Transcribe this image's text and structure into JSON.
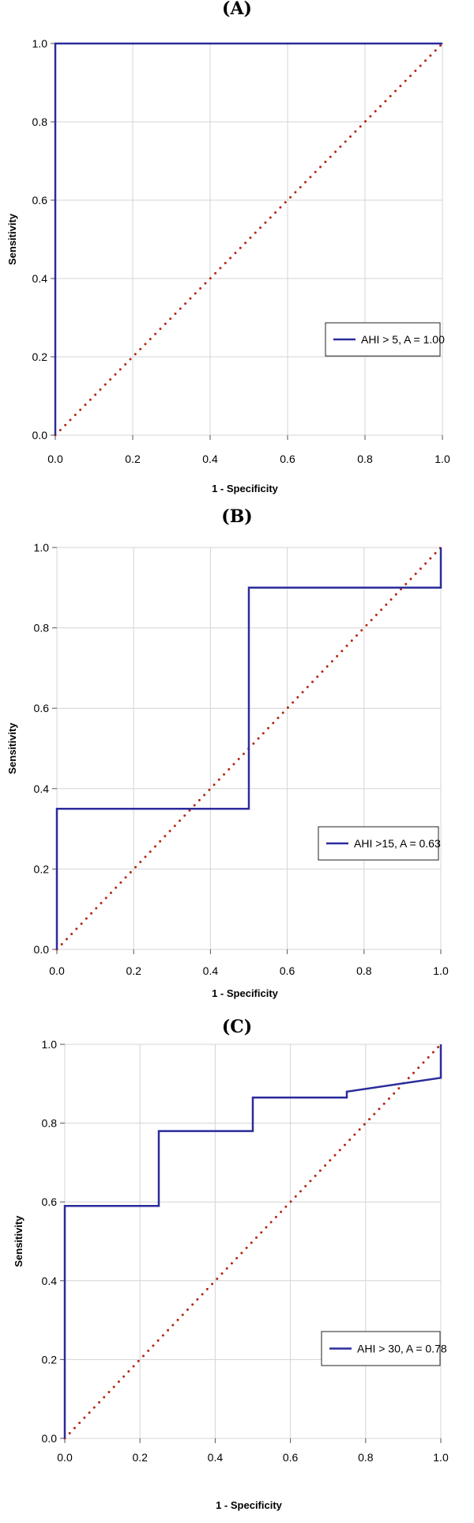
{
  "chart_data": [
    {
      "panel_label": "(A)",
      "type": "line",
      "xlabel": "1 - Specificity",
      "ylabel": "Sensitivity",
      "xlim": [
        0,
        1
      ],
      "ylim": [
        0,
        1
      ],
      "xticks": [
        "0.0",
        "0.2",
        "0.4",
        "0.6",
        "0.8",
        "1.0"
      ],
      "yticks": [
        "0.0",
        "0.2",
        "0.4",
        "0.6",
        "0.8",
        "1.0"
      ],
      "grid": true,
      "legend_position": "bottom-right",
      "series": [
        {
          "name": "AHI > 5, A = 1.00",
          "color": "#2b2b9c",
          "style": "solid",
          "x": [
            0,
            0,
            1
          ],
          "y": [
            0,
            1,
            1
          ]
        },
        {
          "color": "#b5250e",
          "style": "dotted",
          "x": [
            0,
            1
          ],
          "y": [
            0,
            1
          ]
        }
      ]
    },
    {
      "panel_label": "(B)",
      "type": "line",
      "xlabel": "1 - Specificity",
      "ylabel": "Sensitivity",
      "xlim": [
        0,
        1
      ],
      "ylim": [
        0,
        1
      ],
      "xticks": [
        "0.0",
        "0.2",
        "0.4",
        "0.6",
        "0.8",
        "1.0"
      ],
      "yticks": [
        "0.0",
        "0.2",
        "0.4",
        "0.6",
        "0.8",
        "1.0"
      ],
      "grid": true,
      "legend_position": "bottom-right",
      "series": [
        {
          "name": "AHI >15, A = 0.63",
          "color": "#2b2b9c",
          "style": "solid",
          "x": [
            0,
            0,
            0.5,
            0.5,
            1,
            1
          ],
          "y": [
            0,
            0.35,
            0.35,
            0.9,
            0.9,
            1
          ]
        },
        {
          "color": "#b5250e",
          "style": "dotted",
          "x": [
            0,
            1
          ],
          "y": [
            0,
            1
          ]
        }
      ]
    },
    {
      "panel_label": "(C)",
      "type": "line",
      "xlabel": "1 - Specificity",
      "ylabel": "Sensitivity",
      "xlim": [
        0,
        1
      ],
      "ylim": [
        0,
        1
      ],
      "xticks": [
        "0.0",
        "0.2",
        "0.4",
        "0.6",
        "0.8",
        "1.0"
      ],
      "yticks": [
        "0.0",
        "0.2",
        "0.4",
        "0.6",
        "0.8",
        "1.0"
      ],
      "grid": true,
      "legend_position": "bottom-right",
      "series": [
        {
          "name": "AHI > 30, A = 0.78",
          "color": "#2b2b9c",
          "style": "solid",
          "x": [
            0,
            0,
            0.25,
            0.25,
            0.5,
            0.5,
            0.75,
            0.75,
            1,
            1
          ],
          "y": [
            0,
            0.59,
            0.59,
            0.78,
            0.78,
            0.865,
            0.865,
            0.88,
            0.915,
            1
          ]
        },
        {
          "color": "#b5250e",
          "style": "dotted",
          "x": [
            0,
            1
          ],
          "y": [
            0,
            1
          ]
        }
      ]
    }
  ]
}
